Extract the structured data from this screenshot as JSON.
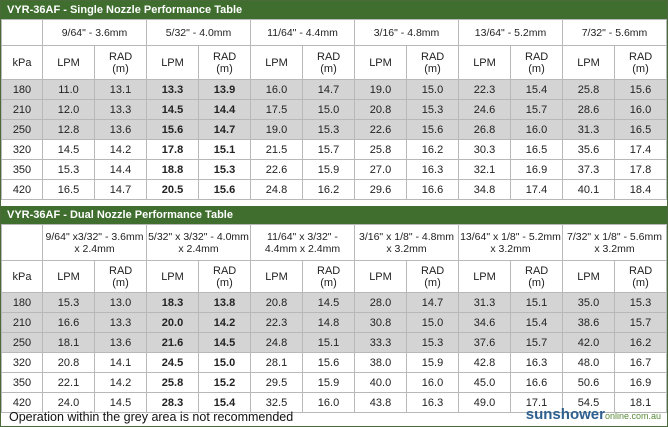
{
  "tables": [
    {
      "title": "VYR-36AF - Single Nozzle Performance Table",
      "nozzles": [
        "9/64\" - 3.6mm",
        "5/32\" - 4.0mm",
        "11/64\" - 4.4mm",
        "3/16\" - 4.8mm",
        "13/64\" - 5.2mm",
        "7/32\" - 5.6mm"
      ],
      "pressure_label": "kPa",
      "flow_label": "LPM",
      "radius_label": "RAD (m)",
      "rows": [
        [
          "180",
          "11.0",
          "13.1",
          "13.3",
          "13.9",
          "16.0",
          "14.7",
          "19.0",
          "15.0",
          "22.3",
          "15.4",
          "25.8",
          "15.6"
        ],
        [
          "210",
          "12.0",
          "13.3",
          "14.5",
          "14.4",
          "17.5",
          "15.0",
          "20.8",
          "15.3",
          "24.6",
          "15.7",
          "28.6",
          "16.0"
        ],
        [
          "250",
          "12.8",
          "13.6",
          "15.6",
          "14.7",
          "19.0",
          "15.3",
          "22.6",
          "15.6",
          "26.8",
          "16.0",
          "31.3",
          "16.5"
        ],
        [
          "320",
          "14.5",
          "14.2",
          "17.8",
          "15.1",
          "21.5",
          "15.7",
          "25.8",
          "16.2",
          "30.3",
          "16.5",
          "35.6",
          "17.4"
        ],
        [
          "350",
          "15.3",
          "14.4",
          "18.8",
          "15.3",
          "22.6",
          "15.9",
          "27.0",
          "16.3",
          "32.1",
          "16.9",
          "37.3",
          "17.8"
        ],
        [
          "420",
          "16.5",
          "14.7",
          "20.5",
          "15.6",
          "24.8",
          "16.2",
          "29.6",
          "16.6",
          "34.8",
          "17.4",
          "40.1",
          "18.4"
        ]
      ]
    },
    {
      "title": "VYR-36AF - Dual Nozzle Performance Table",
      "nozzles": [
        "9/64\" x3/32\" - 3.6mm x 2.4mm",
        "5/32\" x 3/32\" - 4.0mm x 2.4mm",
        "11/64\" x 3/32\" - 4.4mm x 2.4mm",
        "3/16\" x 1/8\" - 4.8mm x 3.2mm",
        "13/64\" x 1/8\" - 5.2mm x 3.2mm",
        "7/32\" x 1/8\" - 5.6mm x 3.2mm"
      ],
      "pressure_label": "kPa",
      "flow_label": "LPM",
      "radius_label": "RAD (m)",
      "rows": [
        [
          "180",
          "15.3",
          "13.0",
          "18.3",
          "13.8",
          "20.8",
          "14.5",
          "28.0",
          "14.7",
          "31.3",
          "15.1",
          "35.0",
          "15.3"
        ],
        [
          "210",
          "16.6",
          "13.3",
          "20.0",
          "14.2",
          "22.3",
          "14.8",
          "30.8",
          "15.0",
          "34.6",
          "15.4",
          "38.6",
          "15.7"
        ],
        [
          "250",
          "18.1",
          "13.6",
          "21.6",
          "14.5",
          "24.8",
          "15.1",
          "33.3",
          "15.3",
          "37.6",
          "15.7",
          "42.0",
          "16.2"
        ],
        [
          "320",
          "20.8",
          "14.1",
          "24.5",
          "15.0",
          "28.1",
          "15.6",
          "38.0",
          "15.9",
          "42.8",
          "16.3",
          "48.0",
          "16.7"
        ],
        [
          "350",
          "22.1",
          "14.2",
          "25.8",
          "15.2",
          "29.5",
          "15.9",
          "40.0",
          "16.0",
          "45.0",
          "16.6",
          "50.6",
          "16.9"
        ],
        [
          "420",
          "24.0",
          "14.5",
          "28.3",
          "15.4",
          "32.5",
          "16.0",
          "43.8",
          "16.3",
          "49.0",
          "17.1",
          "54.5",
          "18.1"
        ]
      ]
    }
  ],
  "footer": {
    "note": "Operation within the grey area is not recommended",
    "logo": "sunshower",
    "logo_suffix": "online.com.au"
  }
}
